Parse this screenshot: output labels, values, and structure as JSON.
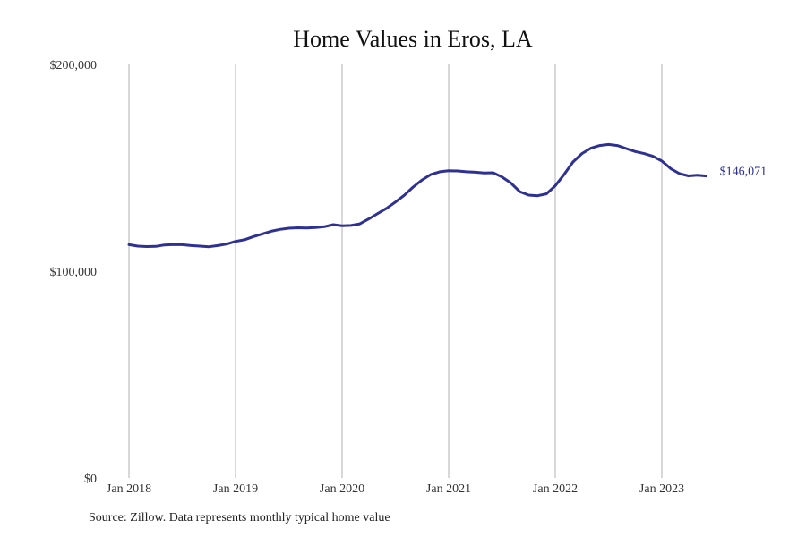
{
  "colors": {
    "line": "#2e3192",
    "gridline": "#b0b0b0",
    "background": "#ffffff"
  },
  "source": "Source: Zillow. Data represents monthly typical home value",
  "chart_data": {
    "type": "line",
    "title": "Home Values in Eros, LA",
    "xlabel": "",
    "ylabel": "",
    "x_range": [
      "2018-01",
      "2023-08"
    ],
    "ylim": [
      0,
      200000
    ],
    "grid": {
      "vertical": true,
      "horizontal": false
    },
    "x_ticks": [
      {
        "x": "2018-01",
        "label": "Jan 2018"
      },
      {
        "x": "2019-01",
        "label": "Jan 2019"
      },
      {
        "x": "2020-01",
        "label": "Jan 2020"
      },
      {
        "x": "2021-01",
        "label": "Jan 2021"
      },
      {
        "x": "2022-01",
        "label": "Jan 2022"
      },
      {
        "x": "2023-01",
        "label": "Jan 2023"
      }
    ],
    "y_ticks": [
      {
        "value": 0,
        "label": "$0"
      },
      {
        "value": 100000,
        "label": "$100,000"
      },
      {
        "value": 200000,
        "label": "$200,000"
      }
    ],
    "end_label": "$146,071",
    "series": [
      {
        "points": [
          [
            "2018-01",
            112800
          ],
          [
            "2018-02",
            112100
          ],
          [
            "2018-03",
            111900
          ],
          [
            "2018-04",
            112000
          ],
          [
            "2018-05",
            112700
          ],
          [
            "2018-06",
            112900
          ],
          [
            "2018-07",
            112800
          ],
          [
            "2018-08",
            112400
          ],
          [
            "2018-09",
            112100
          ],
          [
            "2018-10",
            111800
          ],
          [
            "2018-11",
            112400
          ],
          [
            "2018-12",
            113100
          ],
          [
            "2019-01",
            114400
          ],
          [
            "2019-02",
            115200
          ],
          [
            "2019-03",
            116700
          ],
          [
            "2019-04",
            118000
          ],
          [
            "2019-05",
            119300
          ],
          [
            "2019-06",
            120200
          ],
          [
            "2019-07",
            120800
          ],
          [
            "2019-08",
            121000
          ],
          [
            "2019-09",
            120900
          ],
          [
            "2019-10",
            121100
          ],
          [
            "2019-11",
            121500
          ],
          [
            "2019-12",
            122500
          ],
          [
            "2020-01",
            122000
          ],
          [
            "2020-02",
            122100
          ],
          [
            "2020-03",
            122900
          ],
          [
            "2020-04",
            125300
          ],
          [
            "2020-05",
            127900
          ],
          [
            "2020-06",
            130400
          ],
          [
            "2020-07",
            133400
          ],
          [
            "2020-08",
            136700
          ],
          [
            "2020-09",
            140700
          ],
          [
            "2020-10",
            144100
          ],
          [
            "2020-11",
            146800
          ],
          [
            "2020-12",
            148100
          ],
          [
            "2021-01",
            148600
          ],
          [
            "2021-02",
            148500
          ],
          [
            "2021-03",
            148100
          ],
          [
            "2021-04",
            147900
          ],
          [
            "2021-05",
            147500
          ],
          [
            "2021-06",
            147600
          ],
          [
            "2021-07",
            145600
          ],
          [
            "2021-08",
            142700
          ],
          [
            "2021-09",
            138500
          ],
          [
            "2021-10",
            136800
          ],
          [
            "2021-11",
            136500
          ],
          [
            "2021-12",
            137400
          ],
          [
            "2022-01",
            141300
          ],
          [
            "2022-02",
            146800
          ],
          [
            "2022-03",
            152800
          ],
          [
            "2022-04",
            156900
          ],
          [
            "2022-05",
            159500
          ],
          [
            "2022-06",
            160800
          ],
          [
            "2022-07",
            161300
          ],
          [
            "2022-08",
            160800
          ],
          [
            "2022-09",
            159300
          ],
          [
            "2022-10",
            157900
          ],
          [
            "2022-11",
            156900
          ],
          [
            "2022-12",
            155600
          ],
          [
            "2023-01",
            153300
          ],
          [
            "2023-02",
            149600
          ],
          [
            "2023-03",
            147200
          ],
          [
            "2023-04",
            146100
          ],
          [
            "2023-05",
            146400
          ],
          [
            "2023-06",
            146071
          ]
        ]
      }
    ]
  }
}
